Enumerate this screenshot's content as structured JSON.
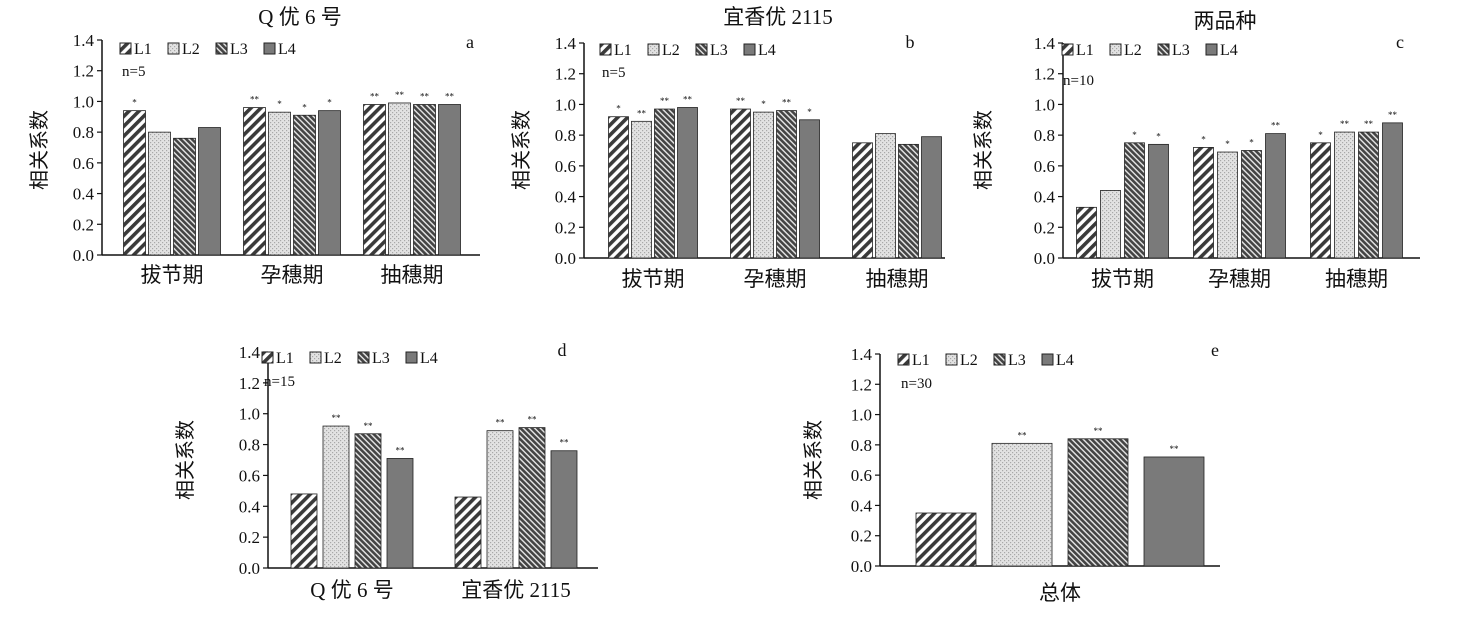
{
  "figure_labels": [
    "a",
    "b",
    "c",
    "d",
    "e"
  ],
  "colors": {
    "L1": "#3a3a3a",
    "L2": "#d8d8d8",
    "L3": "#4a4a4a",
    "L4": "#7a7a7a",
    "axis": "#111111"
  },
  "chart_data": [
    {
      "id": "a",
      "type": "bar",
      "title": "Q 优 6 号",
      "ylabel": "相关系数",
      "xlabel": "",
      "n_label": "n=5",
      "ylim": [
        0,
        1.4
      ],
      "yticks": [
        "0.0",
        "0.2",
        "0.4",
        "0.6",
        "0.8",
        "1.0",
        "1.2",
        "1.4"
      ],
      "legend_position": "top-left",
      "categories": [
        "拔节期",
        "孕穗期",
        "抽穗期"
      ],
      "series": [
        {
          "name": "L1",
          "values": [
            0.94,
            0.96,
            0.98
          ],
          "sig": [
            "*",
            "**",
            "**"
          ]
        },
        {
          "name": "L2",
          "values": [
            0.8,
            0.93,
            0.99
          ],
          "sig": [
            "",
            "*",
            "**"
          ]
        },
        {
          "name": "L3",
          "values": [
            0.76,
            0.91,
            0.98
          ],
          "sig": [
            "",
            "*",
            "**"
          ]
        },
        {
          "name": "L4",
          "values": [
            0.83,
            0.94,
            0.98
          ],
          "sig": [
            "",
            "*",
            "**"
          ]
        }
      ]
    },
    {
      "id": "b",
      "type": "bar",
      "title": "宜香优 2115",
      "ylabel": "相关系数",
      "xlabel": "",
      "n_label": "n=5",
      "ylim": [
        0,
        1.4
      ],
      "yticks": [
        "0.0",
        "0.2",
        "0.4",
        "0.6",
        "0.8",
        "1.0",
        "1.2",
        "1.4"
      ],
      "legend_position": "top-left",
      "categories": [
        "拔节期",
        "孕穗期",
        "抽穗期"
      ],
      "series": [
        {
          "name": "L1",
          "values": [
            0.92,
            0.97,
            0.75
          ],
          "sig": [
            "*",
            "**",
            ""
          ]
        },
        {
          "name": "L2",
          "values": [
            0.89,
            0.95,
            0.81
          ],
          "sig": [
            "**",
            "*",
            ""
          ]
        },
        {
          "name": "L3",
          "values": [
            0.97,
            0.96,
            0.74
          ],
          "sig": [
            "**",
            "**",
            ""
          ]
        },
        {
          "name": "L4",
          "values": [
            0.98,
            0.9,
            0.79
          ],
          "sig": [
            "**",
            "*",
            ""
          ]
        }
      ]
    },
    {
      "id": "c",
      "type": "bar",
      "title": "两品种",
      "ylabel": "相关系数",
      "xlabel": "",
      "n_label": "n=10",
      "ylim": [
        0,
        1.4
      ],
      "yticks": [
        "0.0",
        "0.2",
        "0.4",
        "0.6",
        "0.8",
        "1.0",
        "1.2",
        "1.4"
      ],
      "legend_position": "top-left",
      "categories": [
        "拔节期",
        "孕穗期",
        "抽穗期"
      ],
      "series": [
        {
          "name": "L1",
          "values": [
            0.33,
            0.72,
            0.75
          ],
          "sig": [
            "",
            "*",
            "*"
          ]
        },
        {
          "name": "L2",
          "values": [
            0.44,
            0.69,
            0.82
          ],
          "sig": [
            "",
            "*",
            "**"
          ]
        },
        {
          "name": "L3",
          "values": [
            0.75,
            0.7,
            0.82
          ],
          "sig": [
            "*",
            "*",
            "**"
          ]
        },
        {
          "name": "L4",
          "values": [
            0.74,
            0.81,
            0.88
          ],
          "sig": [
            "*",
            "**",
            "**"
          ]
        }
      ]
    },
    {
      "id": "d",
      "type": "bar",
      "title": "",
      "ylabel": "相关系数",
      "xlabel": "",
      "n_label": "n=15",
      "ylim": [
        0,
        1.4
      ],
      "yticks": [
        "0.0",
        "0.2",
        "0.4",
        "0.6",
        "0.8",
        "1.0",
        "1.2",
        "1.4"
      ],
      "legend_position": "top-left",
      "categories": [
        "Q 优 6 号",
        "宜香优 2115"
      ],
      "series": [
        {
          "name": "L1",
          "values": [
            0.48,
            0.46
          ],
          "sig": [
            "",
            ""
          ]
        },
        {
          "name": "L2",
          "values": [
            0.92,
            0.89
          ],
          "sig": [
            "**",
            "**"
          ]
        },
        {
          "name": "L3",
          "values": [
            0.87,
            0.91
          ],
          "sig": [
            "**",
            "**"
          ]
        },
        {
          "name": "L4",
          "values": [
            0.71,
            0.76
          ],
          "sig": [
            "**",
            "**"
          ]
        }
      ]
    },
    {
      "id": "e",
      "type": "bar",
      "title": "",
      "ylabel": "相关系数",
      "xlabel": "",
      "n_label": "n=30",
      "ylim": [
        0,
        1.4
      ],
      "yticks": [
        "0.0",
        "0.2",
        "0.4",
        "0.6",
        "0.8",
        "1.0",
        "1.2",
        "1.4"
      ],
      "legend_position": "top-left",
      "categories": [
        "总体"
      ],
      "series": [
        {
          "name": "L1",
          "values": [
            0.35
          ],
          "sig": [
            ""
          ]
        },
        {
          "name": "L2",
          "values": [
            0.81
          ],
          "sig": [
            "**"
          ]
        },
        {
          "name": "L3",
          "values": [
            0.84
          ],
          "sig": [
            "**"
          ]
        },
        {
          "name": "L4",
          "values": [
            0.72
          ],
          "sig": [
            "**"
          ]
        }
      ]
    }
  ]
}
